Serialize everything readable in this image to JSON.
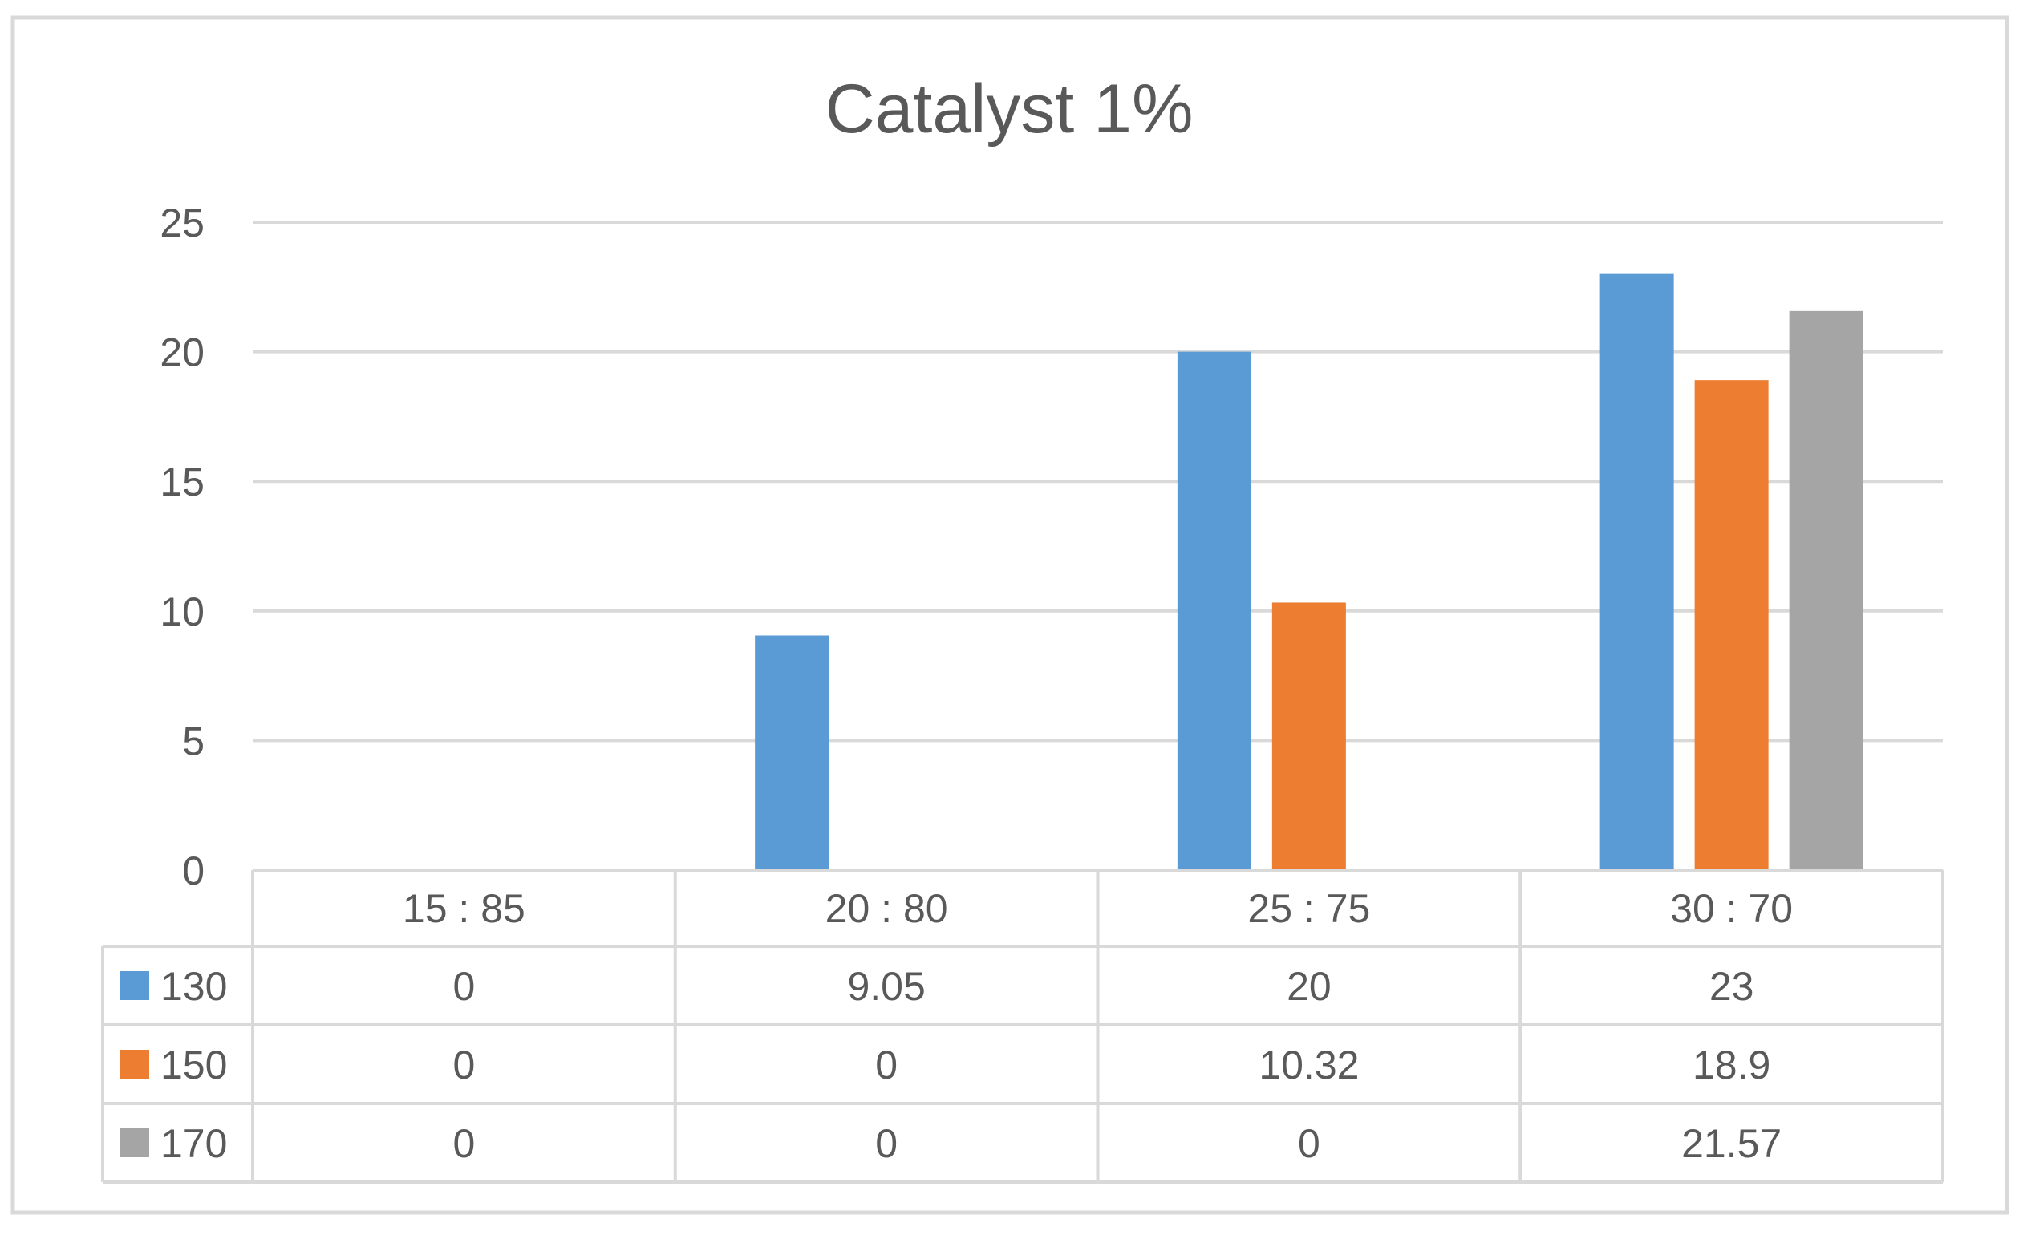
{
  "chart_data": {
    "type": "bar",
    "title": "Catalyst 1%",
    "xlabel": "",
    "ylabel": "",
    "categories": [
      "15 : 85",
      "20 : 80",
      "25 : 75",
      "30 : 70"
    ],
    "series": [
      {
        "name": "130",
        "values": [
          0,
          9.05,
          20,
          23
        ],
        "labels": [
          "0",
          "9.05",
          "20",
          "23"
        ],
        "color": "#5B9BD5"
      },
      {
        "name": "150",
        "values": [
          0,
          0,
          10.32,
          18.9
        ],
        "labels": [
          "0",
          "0",
          "10.32",
          "18.9"
        ],
        "color": "#ED7D31"
      },
      {
        "name": "170",
        "values": [
          0,
          0,
          0,
          21.57
        ],
        "labels": [
          "0",
          "0",
          "0",
          "21.57"
        ],
        "color": "#A5A5A5"
      }
    ],
    "ylim": [
      0,
      25
    ],
    "yticks": [
      "0",
      "5",
      "10",
      "15",
      "20",
      "25"
    ],
    "grid": true,
    "legend": "data-table",
    "colors": {
      "gridline": "#D9D9D9",
      "text": "#595959",
      "title": "#595959",
      "border": "#D9D9D9"
    }
  }
}
